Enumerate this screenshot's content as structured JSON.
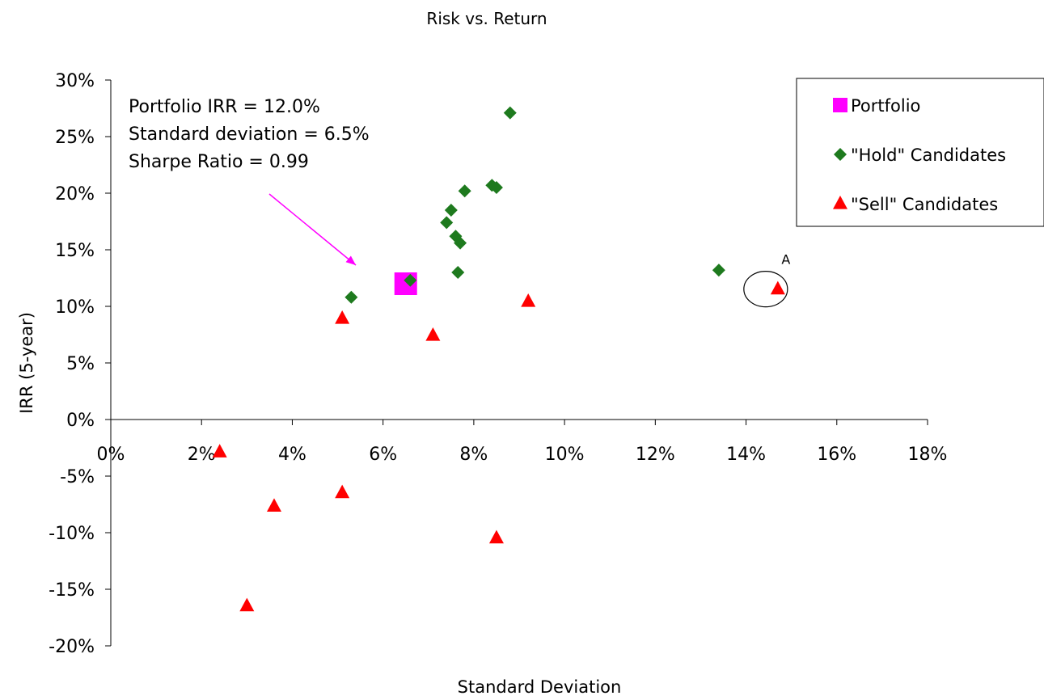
{
  "chart_data": {
    "type": "scatter",
    "title": "Risk vs. Return",
    "xlabel": "Standard Deviation",
    "ylabel": "IRR (5-year)",
    "xlim": [
      0,
      18
    ],
    "ylim": [
      -20,
      30
    ],
    "x_ticks": [
      0,
      2,
      4,
      6,
      8,
      10,
      12,
      14,
      16,
      18
    ],
    "y_ticks": [
      30,
      25,
      20,
      15,
      10,
      5,
      0,
      -5,
      -10,
      -15,
      -20
    ],
    "x_tick_labels": [
      "0%",
      "2%",
      "4%",
      "6%",
      "8%",
      "10%",
      "12%",
      "14%",
      "16%",
      "18%"
    ],
    "y_tick_labels": [
      "30%",
      "25%",
      "20%",
      "15%",
      "10%",
      "5%",
      "0%",
      "-5%",
      "-10%",
      "-15%",
      "-20%"
    ],
    "grid": false,
    "legend_position": "top-right",
    "series": [
      {
        "name": "Portfolio",
        "marker": "square",
        "color": "#ff00ff",
        "points": [
          {
            "x": 6.5,
            "y": 12.0
          }
        ]
      },
      {
        "name": "\"Hold\" Candidates",
        "marker": "diamond",
        "color": "#1e7a1e",
        "points": [
          {
            "x": 5.3,
            "y": 10.8
          },
          {
            "x": 6.6,
            "y": 12.3
          },
          {
            "x": 7.4,
            "y": 17.4
          },
          {
            "x": 7.5,
            "y": 18.5
          },
          {
            "x": 7.6,
            "y": 16.2
          },
          {
            "x": 7.7,
            "y": 15.6
          },
          {
            "x": 7.65,
            "y": 13.0
          },
          {
            "x": 7.8,
            "y": 20.2
          },
          {
            "x": 8.4,
            "y": 20.7
          },
          {
            "x": 8.5,
            "y": 20.5
          },
          {
            "x": 8.8,
            "y": 27.1
          },
          {
            "x": 13.4,
            "y": 13.2
          }
        ]
      },
      {
        "name": "\"Sell\" Candidates",
        "marker": "triangle",
        "color": "#ff0000",
        "points": [
          {
            "x": 2.4,
            "y": -2.8
          },
          {
            "x": 3.0,
            "y": -16.4
          },
          {
            "x": 3.6,
            "y": -7.6
          },
          {
            "x": 5.1,
            "y": 9.0
          },
          {
            "x": 5.1,
            "y": -6.4
          },
          {
            "x": 7.1,
            "y": 7.5
          },
          {
            "x": 8.5,
            "y": -10.4
          },
          {
            "x": 9.2,
            "y": 10.5
          },
          {
            "x": 14.7,
            "y": 11.6
          }
        ]
      }
    ],
    "annotations": {
      "lines": [
        "Portfolio IRR = 12.0%",
        "Standard deviation = 6.5%",
        "Sharpe Ratio = 0.99"
      ],
      "arrow_color": "#ff00ff",
      "highlight_label": "A"
    }
  }
}
